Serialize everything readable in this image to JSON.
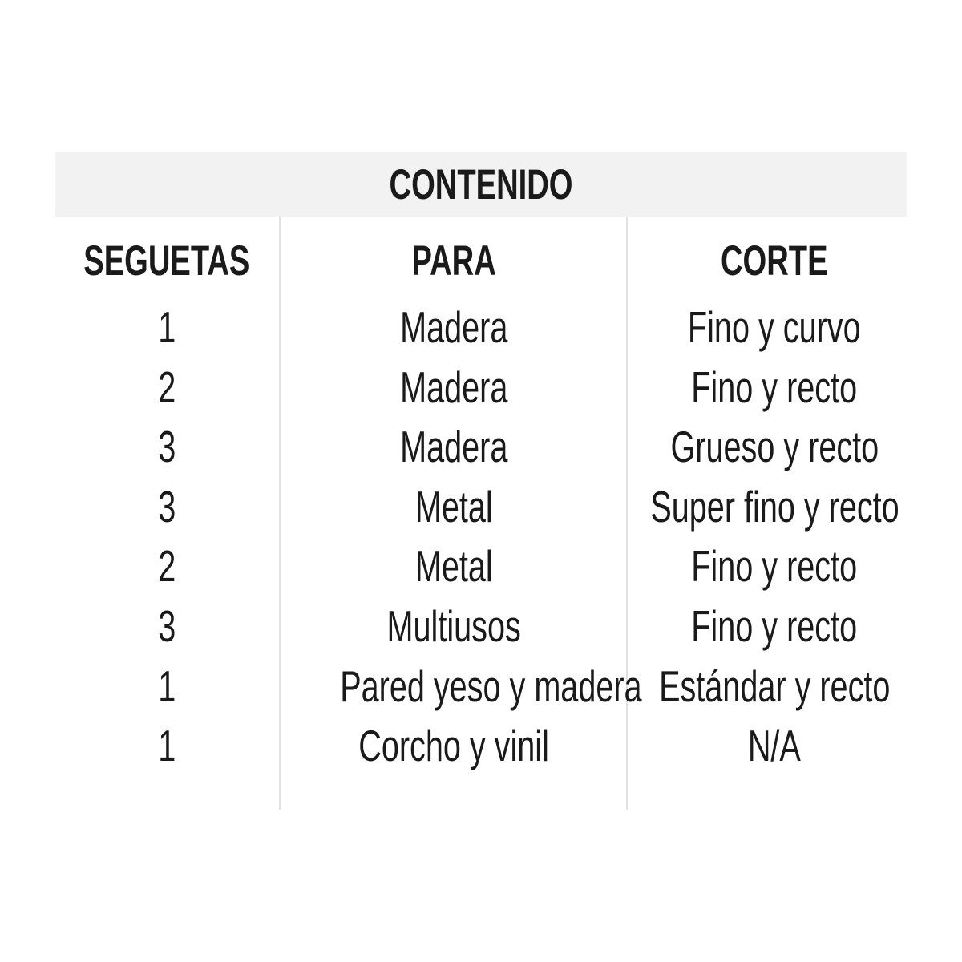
{
  "title": "CONTENIDO",
  "columns": [
    "SEGUETAS",
    "PARA",
    "CORTE"
  ],
  "rows": [
    [
      "1",
      "Madera",
      "Fino y curvo"
    ],
    [
      "2",
      "Madera",
      "Fino y recto"
    ],
    [
      "3",
      "Madera",
      "Grueso y recto"
    ],
    [
      "3",
      "Metal",
      "Super fino y recto"
    ],
    [
      "2",
      "Metal",
      "Fino y recto"
    ],
    [
      "3",
      "Multiusos",
      "Fino y recto"
    ],
    [
      "1",
      "Pared yeso y madera",
      "Estándar y recto"
    ],
    [
      "1",
      "Corcho y vinil",
      "N/A"
    ]
  ],
  "colors": {
    "header_bg": "#f2f2f2",
    "divider": "#e2e2e2",
    "text": "#1a1a1a"
  }
}
